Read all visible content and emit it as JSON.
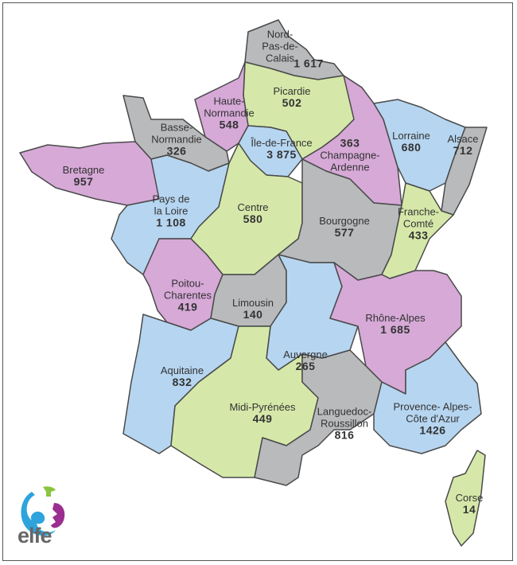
{
  "palette": {
    "gray": "#b9babc",
    "green": "#d5e8a9",
    "purple": "#d6a9d7",
    "blue": "#b6d5f0",
    "outline": "#4a4a4a"
  },
  "logo": {
    "text": "elfe",
    "colors": [
      "#2ea3dc",
      "#8bc540",
      "#9b2e8f"
    ]
  },
  "regions": [
    {
      "label": "Nord-\nPas-de-\nCalais",
      "value": "1 617",
      "color": "gray"
    },
    {
      "label": "Picardie",
      "value": "502",
      "color": "green"
    },
    {
      "label": "Haute-\nNormandie",
      "value": "548",
      "color": "purple"
    },
    {
      "label": "Basse-\nNormandie",
      "value": "326",
      "color": "gray"
    },
    {
      "label": "Bretagne",
      "value": "957",
      "color": "purple"
    },
    {
      "label": "Pays de\nla Loire",
      "value": "1 108",
      "color": "blue"
    },
    {
      "label": "Île-de-France",
      "value": "3 875",
      "color": "blue"
    },
    {
      "label": "Champagne-\nArdenne",
      "value": "363",
      "color": "purple"
    },
    {
      "label": "Lorraine",
      "value": "680",
      "color": "blue"
    },
    {
      "label": "Alsace",
      "value": "712",
      "color": "gray"
    },
    {
      "label": "Centre",
      "value": "580",
      "color": "green"
    },
    {
      "label": "Bourgogne",
      "value": "577",
      "color": "gray"
    },
    {
      "label": "Franche-\nComté",
      "value": "433",
      "color": "green"
    },
    {
      "label": "Poitou-\nCharentes",
      "value": "419",
      "color": "purple"
    },
    {
      "label": "Limousin",
      "value": "140",
      "color": "gray"
    },
    {
      "label": "Auvergne",
      "value": "265",
      "color": "blue"
    },
    {
      "label": "Rhône-Alpes",
      "value": "1 685",
      "color": "purple"
    },
    {
      "label": "Aquitaine",
      "value": "832",
      "color": "blue"
    },
    {
      "label": "Midi-Pyrénées",
      "value": "449",
      "color": "green"
    },
    {
      "label": "Languedoc-\nRoussillon",
      "value": "816",
      "color": "gray"
    },
    {
      "label": "Provence- Alpes-\nCôte d'Azur",
      "value": "1426",
      "color": "blue"
    },
    {
      "label": "Corse",
      "value": "14",
      "color": "green"
    }
  ]
}
